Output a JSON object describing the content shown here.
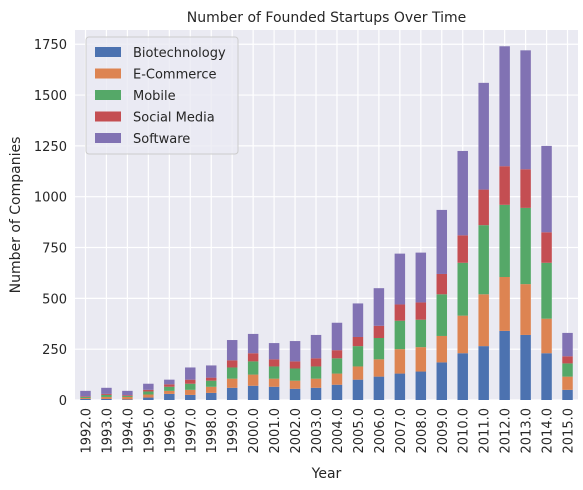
{
  "chart_data": {
    "type": "bar",
    "stacked": true,
    "title": "Number of Founded Startups Over Time",
    "xlabel": "Year",
    "ylabel": "Number of Companies",
    "ylim": [
      0,
      1820
    ],
    "yticks": [
      0,
      250,
      500,
      750,
      1000,
      1250,
      1500,
      1750
    ],
    "grid": true,
    "legend_position": "top-left",
    "categories": [
      "1992.0",
      "1993.0",
      "1994.0",
      "1995.0",
      "1996.0",
      "1997.0",
      "1998.0",
      "1999.0",
      "2000.0",
      "2001.0",
      "2002.0",
      "2003.0",
      "2004.0",
      "2005.0",
      "2006.0",
      "2007.0",
      "2008.0",
      "2009.0",
      "2010.0",
      "2011.0",
      "2012.0",
      "2013.0",
      "2014.0",
      "2015.0"
    ],
    "series": [
      {
        "name": "Biotechnology",
        "color": "#4c72b0",
        "values": [
          5,
          5,
          3,
          12,
          30,
          25,
          35,
          60,
          70,
          65,
          55,
          60,
          75,
          100,
          115,
          130,
          140,
          185,
          230,
          265,
          340,
          320,
          230,
          50
        ]
      },
      {
        "name": "E-Commerce",
        "color": "#dd8452",
        "values": [
          5,
          10,
          12,
          15,
          15,
          25,
          30,
          45,
          55,
          40,
          40,
          45,
          55,
          65,
          85,
          120,
          120,
          130,
          185,
          255,
          265,
          250,
          170,
          65
        ]
      },
      {
        "name": "Mobile",
        "color": "#55a868",
        "values": [
          5,
          10,
          5,
          15,
          20,
          30,
          30,
          55,
          65,
          60,
          60,
          60,
          75,
          100,
          105,
          140,
          135,
          205,
          260,
          340,
          355,
          375,
          275,
          65
        ]
      },
      {
        "name": "Social Media",
        "color": "#c44e52",
        "values": [
          3,
          5,
          4,
          8,
          12,
          20,
          15,
          35,
          40,
          35,
          35,
          40,
          40,
          45,
          60,
          80,
          85,
          100,
          135,
          175,
          190,
          190,
          150,
          35
        ]
      },
      {
        "name": "Software",
        "color": "#8172b3",
        "values": [
          27,
          30,
          21,
          30,
          23,
          60,
          60,
          100,
          95,
          80,
          100,
          115,
          135,
          165,
          185,
          250,
          245,
          315,
          415,
          525,
          590,
          585,
          425,
          115
        ]
      }
    ]
  }
}
